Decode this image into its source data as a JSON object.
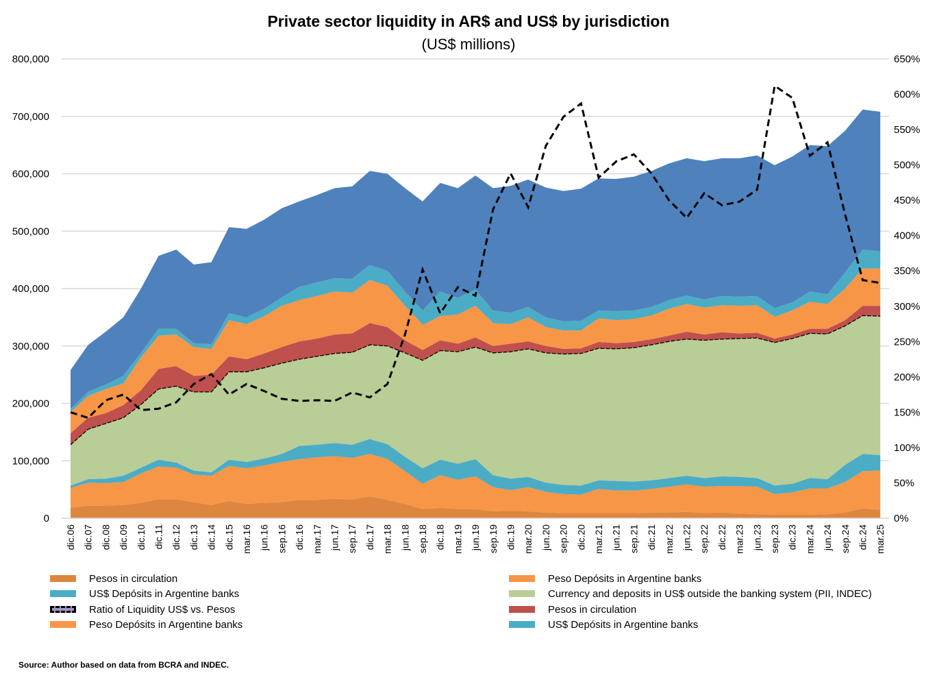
{
  "chart_data": {
    "type": "area",
    "stacked": true,
    "title": "Private sector liquidity in AR$ and US$ by jurisdiction",
    "subtitle": "(US$ millions)",
    "value_scale": 1000,
    "ylim": [
      0,
      800
    ],
    "y2lim": [
      0,
      650
    ],
    "yticks": [
      "0",
      "100,000",
      "200,000",
      "300,000",
      "400,000",
      "500,000",
      "600,000",
      "700,000",
      "800,000"
    ],
    "y2ticks": [
      "0%",
      "50%",
      "100%",
      "150%",
      "200%",
      "250%",
      "300%",
      "350%",
      "400%",
      "450%",
      "500%",
      "550%",
      "600%",
      "650%"
    ],
    "grid": true,
    "legend_position": "bottom",
    "categories": [
      "dic.06",
      "dic.07",
      "dic.08",
      "dic.09",
      "dic.10",
      "dic.11",
      "dic.12",
      "dic.13",
      "dic.14",
      "dic.15",
      "mar.16",
      "jun.16",
      "sep.16",
      "dic.16",
      "mar.17",
      "jun.17",
      "sep.17",
      "dic.17",
      "mar.18",
      "jun.18",
      "sep.18",
      "dic.18",
      "mar.19",
      "jun.19",
      "sep.19",
      "dic.19",
      "mar.20",
      "jun.20",
      "sep.20",
      "dic.20",
      "mar.21",
      "jun.21",
      "sep.21",
      "dic.21",
      "mar.22",
      "jun.22",
      "sep.22",
      "dic.22",
      "mar.23",
      "jun.23",
      "sep.23",
      "dic.23",
      "mar.24",
      "jun.24",
      "sep.24",
      "dic.24",
      "mar.25"
    ],
    "series": [
      {
        "name": "Pesos in circulation",
        "color": "#dd8640",
        "values": [
          18,
          22,
          22,
          23,
          27,
          33,
          33,
          28,
          23,
          30,
          25,
          27,
          28,
          32,
          32,
          34,
          33,
          38,
          32,
          25,
          16,
          18,
          16,
          16,
          12,
          13,
          12,
          10,
          9,
          9,
          9,
          9,
          9,
          10,
          10,
          11,
          9,
          10,
          8,
          7,
          6,
          6,
          6,
          7,
          10,
          17,
          15
        ]
      },
      {
        "name": "Peso Depósits in Argentine banks",
        "color": "#f79646",
        "values": [
          35,
          40,
          39,
          40,
          51,
          57,
          55,
          48,
          51,
          61,
          62,
          65,
          70,
          71,
          74,
          74,
          72,
          74,
          71,
          57,
          44,
          57,
          51,
          57,
          42,
          36,
          42,
          36,
          33,
          32,
          42,
          39,
          39,
          41,
          45,
          48,
          46,
          46,
          48,
          48,
          36,
          39,
          46,
          45,
          53,
          65,
          68
        ]
      },
      {
        "name": "US$ Depósits in Argentine banks",
        "color": "#4bacc6",
        "values": [
          4,
          6,
          8,
          11,
          10,
          12,
          9,
          7,
          6,
          11,
          11,
          12,
          14,
          23,
          22,
          23,
          23,
          26,
          26,
          25,
          27,
          27,
          28,
          30,
          21,
          20,
          18,
          16,
          16,
          16,
          15,
          17,
          16,
          15,
          15,
          15,
          15,
          17,
          16,
          15,
          15,
          15,
          18,
          16,
          30,
          30,
          27
        ]
      },
      {
        "name": "Currency and deposits in US$ outside the banking system (PII, INDEC)",
        "color": "#b9cd96",
        "values": [
          71,
          87,
          96,
          101,
          110,
          123,
          133,
          137,
          140,
          153,
          157,
          158,
          158,
          151,
          154,
          156,
          161,
          164,
          171,
          181,
          188,
          190,
          195,
          195,
          213,
          221,
          223,
          226,
          228,
          230,
          230,
          230,
          233,
          236,
          238,
          238,
          240,
          239,
          241,
          244,
          249,
          253,
          252,
          253,
          242,
          241,
          242
        ]
      },
      {
        "name": "Pesos in circulation",
        "color": "#c0504d",
        "values": [
          20,
          20,
          18,
          22,
          25,
          35,
          35,
          28,
          30,
          27,
          22,
          25,
          28,
          31,
          31,
          33,
          33,
          38,
          33,
          22,
          18,
          18,
          14,
          17,
          12,
          14,
          13,
          12,
          9,
          9,
          11,
          10,
          10,
          10,
          10,
          13,
          10,
          12,
          9,
          9,
          7,
          7,
          8,
          9,
          10,
          17,
          18
        ]
      },
      {
        "name": "Peso Depósits in Argentine banks",
        "color": "#f79646",
        "values": [
          37,
          38,
          42,
          38,
          57,
          58,
          55,
          50,
          45,
          63,
          61,
          65,
          72,
          72,
          74,
          75,
          71,
          75,
          72,
          60,
          44,
          42,
          51,
          55,
          40,
          34,
          42,
          33,
          32,
          31,
          41,
          40,
          40,
          41,
          47,
          48,
          47,
          47,
          48,
          48,
          38,
          42,
          47,
          43,
          55,
          65,
          65
        ]
      },
      {
        "name": "US$ Depósits in Argentine banks",
        "color": "#4bacc6",
        "values": [
          5,
          7,
          8,
          13,
          8,
          12,
          10,
          7,
          8,
          12,
          12,
          13,
          15,
          23,
          24,
          23,
          24,
          26,
          26,
          25,
          25,
          43,
          29,
          28,
          22,
          20,
          18,
          17,
          16,
          17,
          14,
          16,
          15,
          15,
          15,
          15,
          14,
          16,
          16,
          16,
          15,
          14,
          18,
          17,
          28,
          33,
          30
        ]
      },
      {
        "name": "",
        "color": "#4f81bd",
        "values": [
          68,
          82,
          92,
          102,
          112,
          127,
          138,
          137,
          143,
          150,
          154,
          155,
          155,
          149,
          152,
          157,
          161,
          164,
          169,
          180,
          190,
          189,
          191,
          199,
          213,
          221,
          222,
          226,
          227,
          230,
          230,
          230,
          233,
          237,
          238,
          239,
          241,
          240,
          241,
          245,
          249,
          254,
          255,
          258,
          247,
          244,
          243
        ]
      }
    ],
    "line_series": {
      "name": "Ratio of Liquidity US$ vs. Pesos",
      "axis": "right",
      "unit": "%",
      "color": "#000000",
      "values": [
        150,
        142,
        167,
        175,
        153,
        155,
        164,
        190,
        204,
        175,
        190,
        180,
        169,
        166,
        167,
        166,
        178,
        171,
        190,
        260,
        352,
        290,
        327,
        315,
        437,
        488,
        440,
        527,
        568,
        587,
        482,
        505,
        515,
        488,
        450,
        425,
        460,
        443,
        448,
        465,
        612,
        595,
        513,
        532,
        430,
        337,
        333
      ]
    },
    "legend": [
      {
        "label": "Pesos in circulation",
        "color": "#dd8640",
        "type": "area"
      },
      {
        "label": "Peso Depósits in Argentine banks",
        "color": "#f79646",
        "type": "area"
      },
      {
        "label": "US$ Depósits in Argentine banks",
        "color": "#4bacc6",
        "type": "area"
      },
      {
        "label": "Currency and deposits in US$ outside the banking system (PII, INDEC)",
        "color": "#b9cd96",
        "type": "area"
      },
      {
        "label": "Ratio of Liquidity US$ vs. Pesos",
        "color": "#a094bf",
        "type": "line"
      },
      {
        "label": "Pesos in circulation",
        "color": "#c0504d",
        "type": "area"
      },
      {
        "label": "Peso Depósits in Argentine banks",
        "color": "#f79646",
        "type": "area"
      },
      {
        "label": "US$ Depósits in Argentine banks",
        "color": "#4bacc6",
        "type": "area"
      }
    ],
    "source": "Source: Author based on data from BCRA and INDEC."
  }
}
